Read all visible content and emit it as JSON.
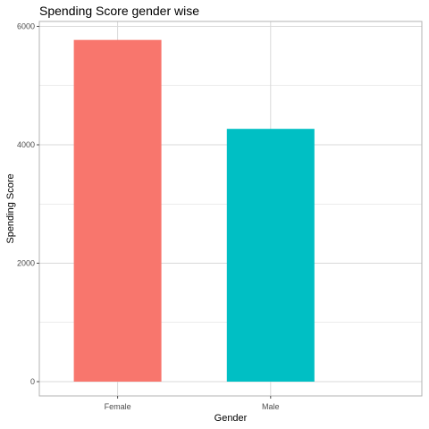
{
  "chart_data": {
    "type": "bar",
    "title": "Spending Score gender wise",
    "xlabel": "Gender",
    "ylabel": "Spending Score",
    "categories": [
      "Female",
      "Male"
    ],
    "values": [
      5771,
      4269
    ],
    "ylim": [
      0,
      6000
    ],
    "yticks": [
      0,
      2000,
      4000,
      6000
    ],
    "grid": true,
    "legend": "none",
    "colors": [
      "#F8766D",
      "#00BFC4"
    ]
  },
  "colors": {
    "grid": "#d9d9d9",
    "panel_border": "#b3b3b3",
    "tick": "#4d4d4d"
  }
}
